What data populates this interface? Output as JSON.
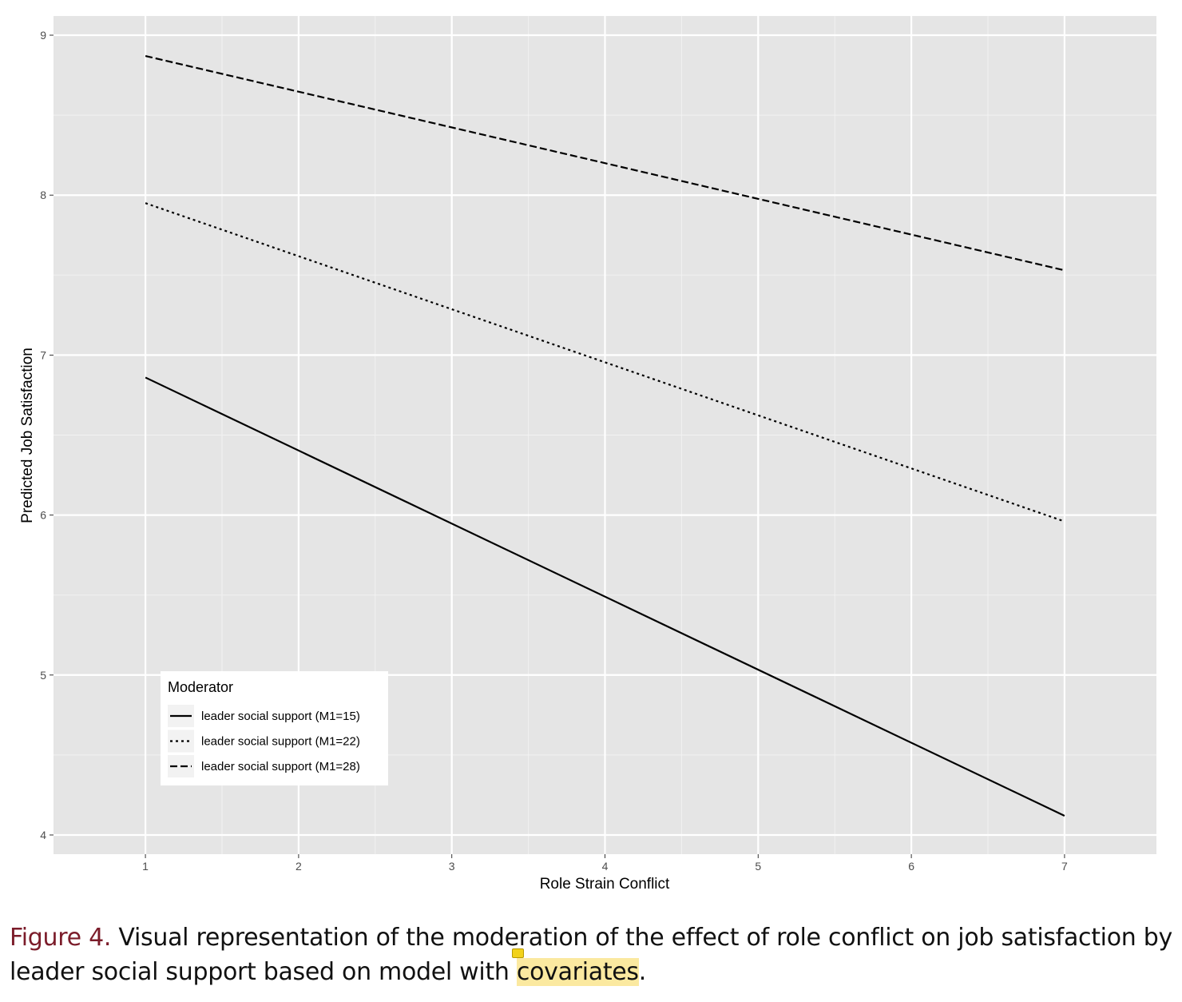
{
  "chart_data": {
    "type": "line",
    "xlabel": "Role Strain Conflict",
    "ylabel": "Predicted Job Satisfaction",
    "x_ticks": [
      "1",
      "2",
      "3",
      "4",
      "5",
      "6",
      "7"
    ],
    "y_ticks": [
      "4",
      "5",
      "6",
      "7",
      "8",
      "9"
    ],
    "xlim": [
      0.4,
      7.6
    ],
    "ylim": [
      3.88,
      9.12
    ],
    "grid": true,
    "legend": {
      "title": "Moderator",
      "position": "bottom-left"
    },
    "series": [
      {
        "name": "leader social support (M1=15)",
        "linetype": "solid",
        "x": [
          1,
          7
        ],
        "y": [
          6.86,
          4.12
        ]
      },
      {
        "name": "leader social support (M1=22)",
        "linetype": "dotted",
        "x": [
          1,
          7
        ],
        "y": [
          7.95,
          5.96
        ]
      },
      {
        "name": "leader social support (M1=28)",
        "linetype": "dashed",
        "x": [
          1,
          7
        ],
        "y": [
          8.87,
          7.53
        ]
      }
    ]
  },
  "caption": {
    "label": "Figure 4.",
    "text_before": " Visual representation of the moderation of the effect of role conflict on job satisfaction by leader social support based on model with ",
    "highlight": "covariates",
    "text_after": "."
  },
  "colors": {
    "panel": "#e5e5e5",
    "grid": "#ffffff",
    "line": "#000000",
    "caption_label": "#7b1c2a",
    "highlight": "#fbe9a0"
  }
}
